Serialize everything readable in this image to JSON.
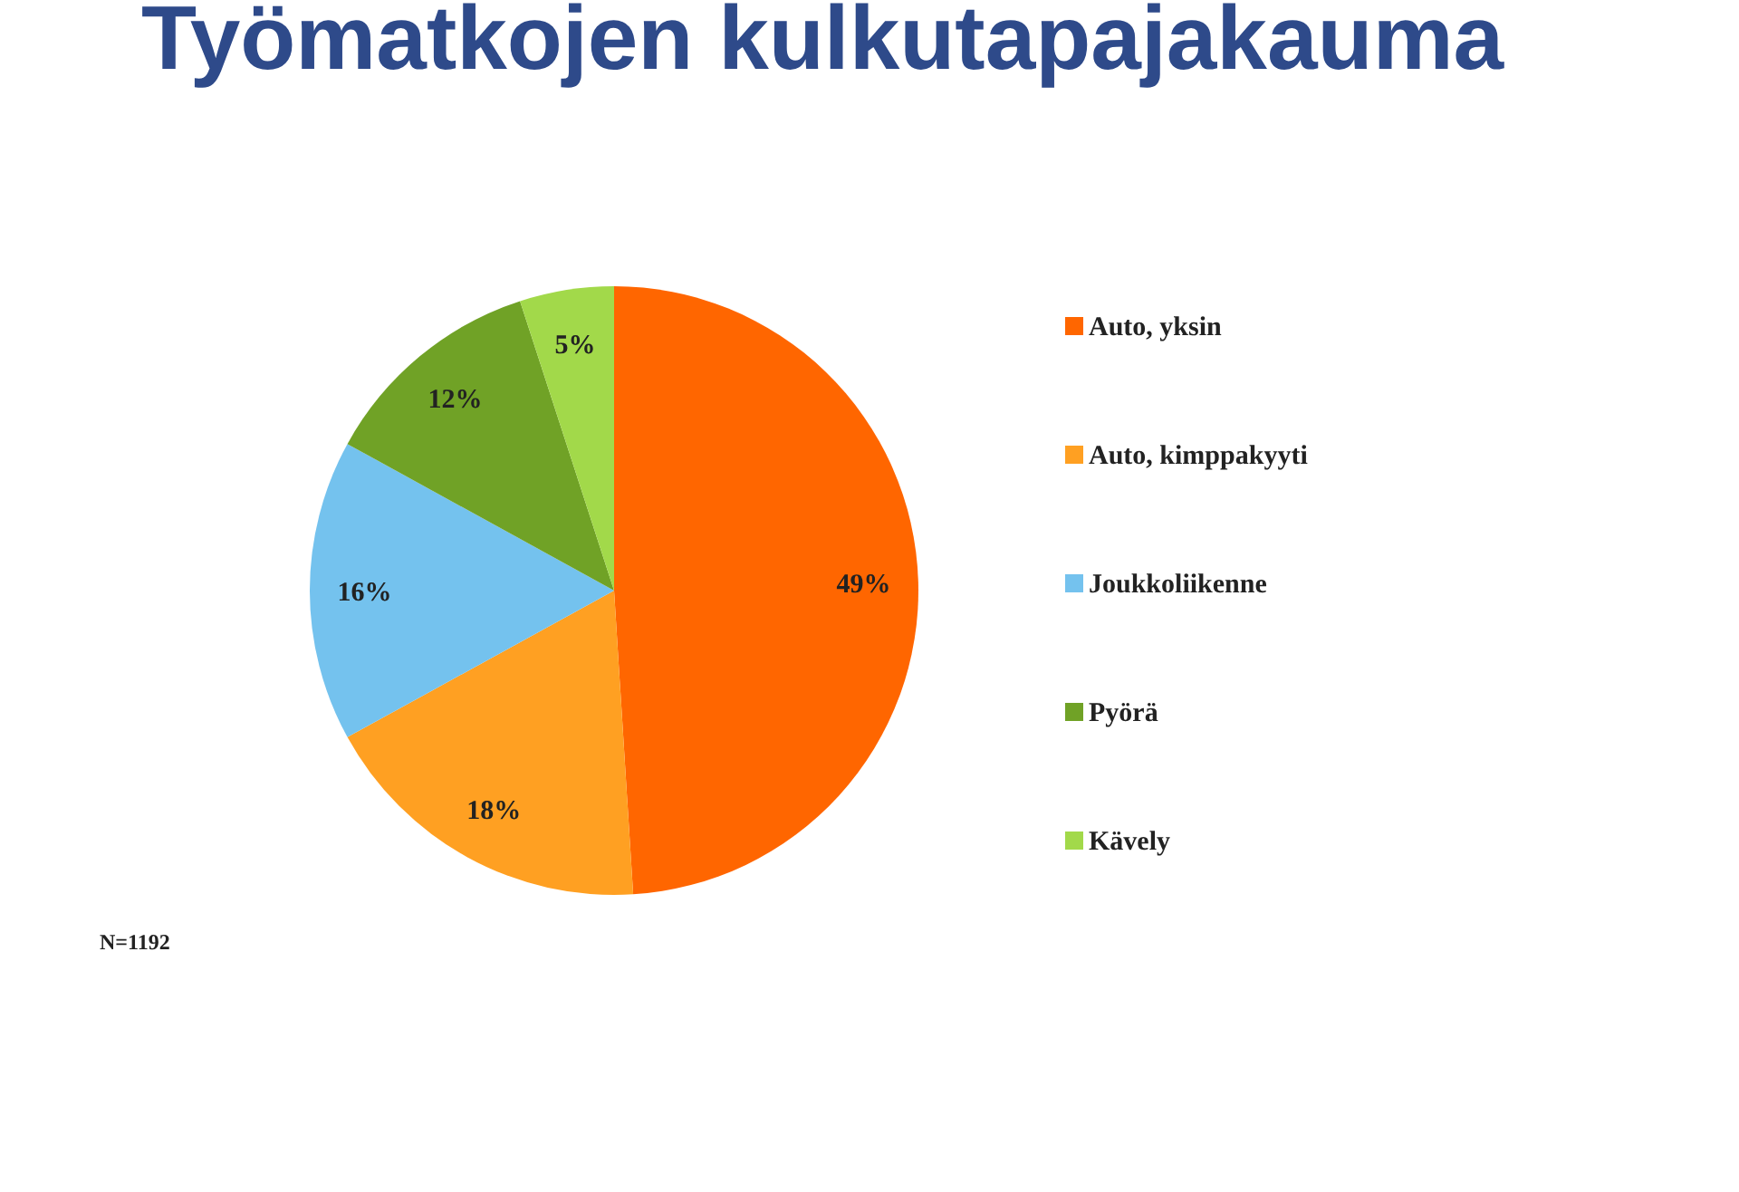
{
  "chart_data": {
    "type": "pie",
    "title": "Työmatkojen kulkutapajakauma",
    "categories": [
      "Auto, yksin",
      "Auto, kimppakyyti",
      "Joukkoliikenne",
      "Pyörä",
      "Kävely"
    ],
    "values": [
      49,
      18,
      16,
      12,
      5
    ],
    "colors": [
      "#ff6600",
      "#ffa022",
      "#74c2ee",
      "#70a226",
      "#a2d94a"
    ],
    "value_labels": [
      "49%",
      "18%",
      "16%",
      "12%",
      "5%"
    ],
    "legend": "right",
    "annotations": [
      "N=1192"
    ]
  }
}
